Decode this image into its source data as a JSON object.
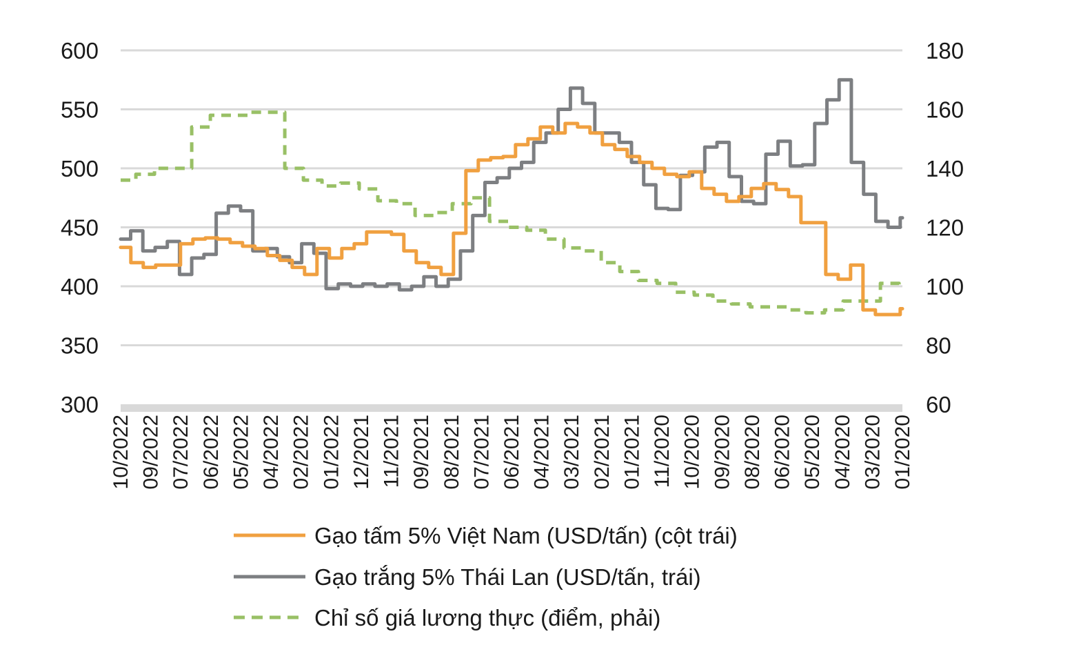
{
  "chart_data": {
    "type": "line",
    "left_axis": {
      "ticks": [
        "600",
        "550",
        "500",
        "450",
        "400",
        "350",
        "300"
      ],
      "ylim": [
        300,
        600
      ]
    },
    "right_axis": {
      "ticks": [
        "180",
        "160",
        "140",
        "120",
        "100",
        "80",
        "60"
      ],
      "ylim": [
        60,
        180
      ]
    },
    "x_ticks": [
      "10/2022",
      "09/2022",
      "07/2022",
      "06/2022",
      "05/2022",
      "04/2022",
      "02/2022",
      "01/2022",
      "12/2021",
      "11/2021",
      "09/2021",
      "08/2021",
      "07/2021",
      "06/2021",
      "04/2021",
      "03/2021",
      "02/2021",
      "01/2021",
      "11/2020",
      "10/2020",
      "09/2020",
      "08/2020",
      "06/2020",
      "05/2020",
      "04/2020",
      "03/2020",
      "01/2020"
    ],
    "grid": true,
    "series": [
      {
        "name": "Gạo tấm 5% Việt Nam (USD/tấn) (cột trái)",
        "axis": "left",
        "color": "#f0a040",
        "style": "solid",
        "values": [
          433,
          420,
          416,
          418,
          418,
          436,
          440,
          441,
          440,
          437,
          434,
          432,
          426,
          422,
          416,
          410,
          432,
          424,
          432,
          436,
          446,
          446,
          444,
          430,
          420,
          416,
          410,
          445,
          498,
          507,
          509,
          510,
          520,
          525,
          535,
          530,
          538,
          535,
          530,
          520,
          516,
          510,
          505,
          500,
          495,
          493,
          497,
          483,
          478,
          472,
          476,
          483,
          487,
          482,
          476,
          454,
          454,
          410,
          406,
          418,
          380,
          376,
          376,
          381
        ]
      },
      {
        "name": "Gạo trắng 5% Thái Lan (USD/tấn, trái)",
        "axis": "left",
        "color": "#7d7f82",
        "style": "solid",
        "values": [
          440,
          447,
          430,
          433,
          438,
          410,
          424,
          427,
          462,
          468,
          464,
          430,
          432,
          425,
          420,
          436,
          428,
          398,
          402,
          400,
          402,
          400,
          402,
          397,
          400,
          408,
          400,
          406,
          430,
          460,
          488,
          492,
          500,
          505,
          522,
          530,
          550,
          568,
          555,
          530,
          530,
          522,
          505,
          486,
          466,
          465,
          494,
          497,
          518,
          522,
          493,
          472,
          470,
          512,
          523,
          502,
          503,
          538,
          558,
          575,
          505,
          478,
          455,
          450,
          458
        ]
      },
      {
        "name": "Chỉ số giá lương thực (điểm, phải)",
        "axis": "right",
        "color": "#99c066",
        "style": "dashed",
        "values": [
          136,
          138,
          140,
          140,
          154,
          158,
          158,
          159,
          159,
          140,
          136,
          134,
          135,
          133,
          129,
          128,
          124,
          125,
          128,
          130,
          122,
          120,
          119,
          116,
          113,
          112,
          108,
          105,
          102,
          101,
          98,
          97,
          95,
          94,
          93,
          93,
          92,
          91,
          92,
          95,
          95,
          101,
          100
        ]
      }
    ]
  },
  "legend": [
    {
      "label": "Gạo tấm 5% Việt Nam (USD/tấn) (cột trái)",
      "color": "#f0a040",
      "style": "solid"
    },
    {
      "label": "Gạo trắng 5% Thái Lan (USD/tấn, trái)",
      "color": "#7d7f82",
      "style": "solid"
    },
    {
      "label": "Chỉ số giá lương thực (điểm, phải)",
      "color": "#99c066",
      "style": "dashed"
    }
  ]
}
